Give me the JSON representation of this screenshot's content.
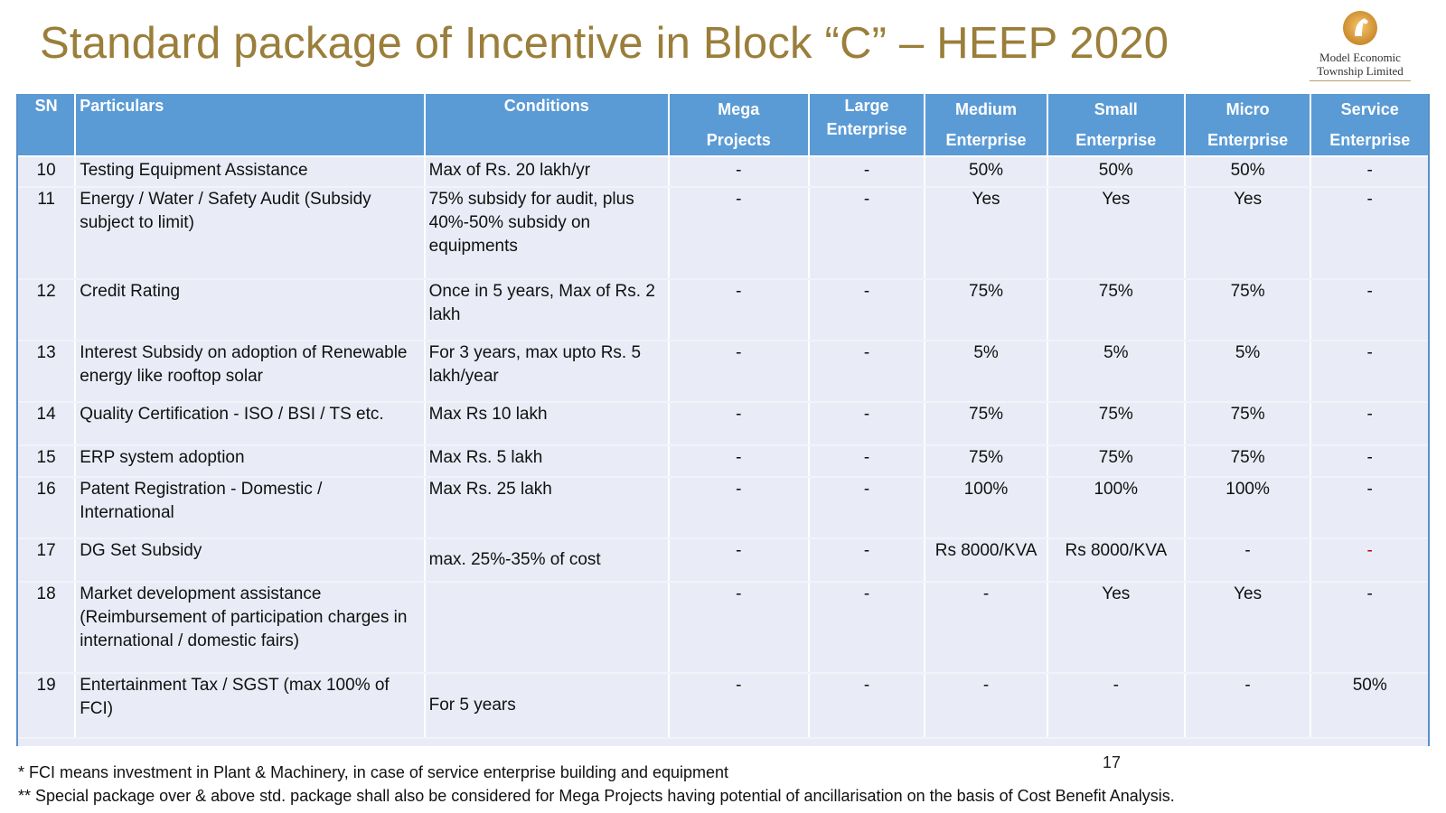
{
  "title": "Standard package of Incentive in Block “C” – HEEP 2020",
  "logo": {
    "line1": "Model Economic",
    "line2": "Township Limited",
    "icon": "reliance-drop-logo"
  },
  "table": {
    "headers": {
      "sn": "SN",
      "particulars": "Particulars",
      "conditions": "Conditions",
      "mega": [
        "Mega",
        "Projects"
      ],
      "large": [
        "Large",
        "Enterprise"
      ],
      "medium": [
        "Medium",
        "Enterprise"
      ],
      "small": [
        "Small",
        "Enterprise"
      ],
      "micro": [
        "Micro",
        "Enterprise"
      ],
      "service": [
        "Service",
        "Enterprise"
      ]
    },
    "rows": [
      {
        "sn": "10",
        "particulars": [
          "Testing Equipment Assistance"
        ],
        "conditions": [
          "Max of Rs. 20 lakh/yr"
        ],
        "mega": "-",
        "large": "-",
        "medium": "50%",
        "small": "50%",
        "micro": "50%",
        "service": "-"
      },
      {
        "sn": "11",
        "particulars": [
          "Energy / Water / Safety Audit (Subsidy",
          "subject to limit)"
        ],
        "conditions": [
          "75% subsidy for audit, plus",
          "40%-50% subsidy on",
          "equipments"
        ],
        "mega": "-",
        "large": "-",
        "medium": "Yes",
        "small": "Yes",
        "micro": "Yes",
        "service": "-"
      },
      {
        "sn": "12",
        "particulars": [
          "Credit Rating"
        ],
        "conditions": [
          "Once in 5 years, Max of Rs. 2",
          "lakh"
        ],
        "mega": "-",
        "large": "-",
        "medium": "75%",
        "small": "75%",
        "micro": "75%",
        "service": "-"
      },
      {
        "sn": "13",
        "particulars": [
          "Interest Subsidy on adoption of Renewable",
          "energy like rooftop solar"
        ],
        "conditions": [
          "For 3 years, max upto Rs. 5",
          "lakh/year"
        ],
        "mega": "-",
        "large": "-",
        "medium": "5%",
        "small": "5%",
        "micro": "5%",
        "service": "-"
      },
      {
        "sn": "14",
        "particulars": [
          "Quality Certification - ISO / BSI / TS etc."
        ],
        "conditions": [
          "Max Rs 10 lakh"
        ],
        "mega": "-",
        "large": "-",
        "medium": "75%",
        "small": "75%",
        "micro": "75%",
        "service": "-"
      },
      {
        "sn": "15",
        "particulars": [
          "ERP system adoption"
        ],
        "conditions": [
          "Max Rs. 5 lakh"
        ],
        "mega": "-",
        "large": "-",
        "medium": "75%",
        "small": "75%",
        "micro": "75%",
        "service": "-"
      },
      {
        "sn": "16",
        "particulars": [
          "Patent Registration - Domestic /",
          "International"
        ],
        "conditions": [
          "Max Rs. 25 lakh"
        ],
        "mega": "-",
        "large": "-",
        "medium": "100%",
        "small": "100%",
        "micro": "100%",
        "service": "-"
      },
      {
        "sn": "17",
        "particulars": [
          "DG Set Subsidy"
        ],
        "conditions": [
          "max. 25%-35% of cost"
        ],
        "mega": "-",
        "large": "-",
        "medium": "Rs 8000/KVA",
        "small": "Rs 8000/KVA",
        "micro": "-",
        "service": "-"
      },
      {
        "sn": "18",
        "particulars": [
          "Market development assistance",
          "(Reimbursement of participation charges in",
          "international / domestic fairs)"
        ],
        "conditions": [],
        "mega": "-",
        "large": "-",
        "medium": "-",
        "small": "Yes",
        "micro": "Yes",
        "service": "-"
      },
      {
        "sn": "19",
        "particulars": [
          "Entertainment Tax / SGST (max 100% of",
          "FCI)"
        ],
        "conditions": [
          "For 5 years"
        ],
        "mega": "-",
        "large": "-",
        "medium": "-",
        "small": "-",
        "micro": "-",
        "service": "50%"
      }
    ]
  },
  "page_number": "17",
  "footnotes": [
    "* FCI means investment in Plant & Machinery, in case of service enterprise building and equipment",
    "** Special package over & above std. package shall also be considered for Mega Projects having potential of ancillarisation on the basis of Cost Benefit Analysis."
  ],
  "colors": {
    "title": "#9a7e3a",
    "header_bg": "#5b9bd5",
    "row_bg": "#e9ecf6",
    "accent_red": "#c00000"
  }
}
